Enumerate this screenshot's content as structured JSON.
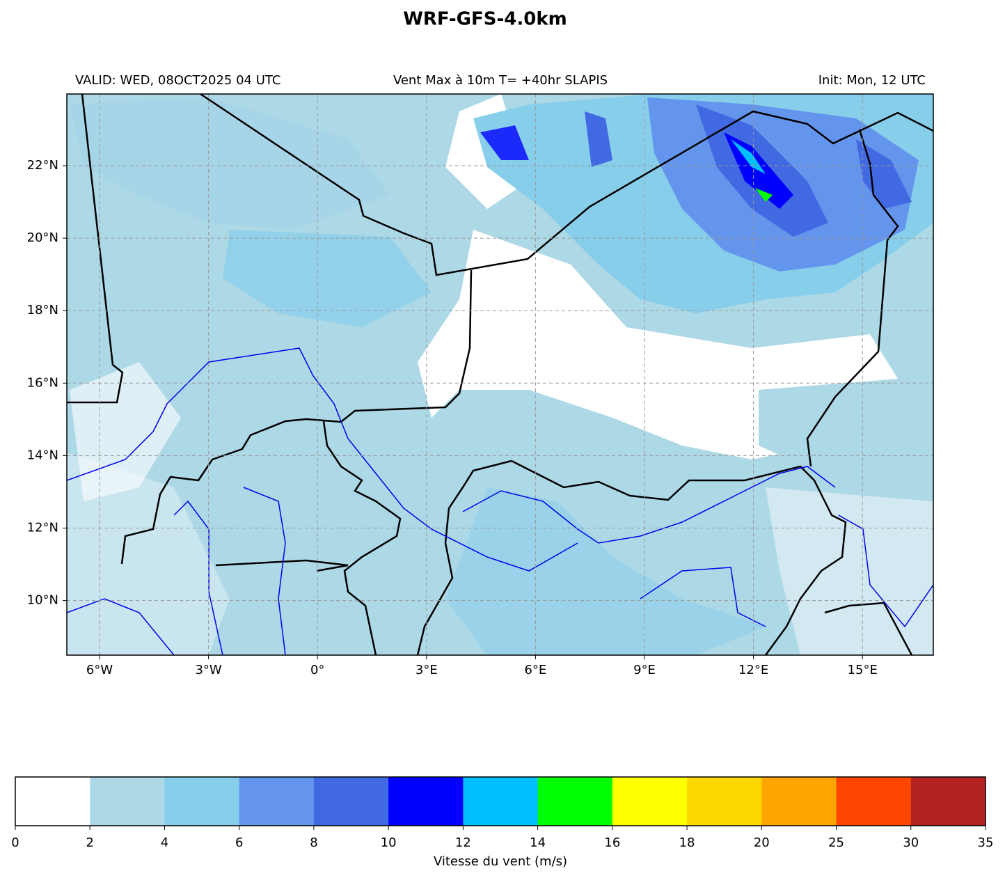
{
  "title": "WRF-GFS-4.0km",
  "subtitle_left": "VALID: WED, 08OCT2025 04 UTC",
  "subtitle_center": "Vent Max à 10m T= +40hr SLAPIS",
  "subtitle_right": "Init: Mon, 12 UTC",
  "map": {
    "lat_labels": [
      "22°N",
      "20°N",
      "18°N",
      "16°N",
      "14°N",
      "12°N",
      "10°N"
    ],
    "lon_labels": [
      "6°W",
      "3°W",
      "0°",
      "3°E",
      "6°E",
      "9°E",
      "12°E",
      "15°E"
    ]
  },
  "colorbar": {
    "label": "Vitesse du vent (m/s)",
    "ticks": [
      0,
      2,
      4,
      6,
      8,
      10,
      12,
      14,
      16,
      18,
      20,
      25,
      30,
      35
    ],
    "colors": [
      "#ffffff",
      "#add8e6",
      "#87ceeb",
      "#6495ed",
      "#4169e1",
      "#0000ff",
      "#00bfff",
      "#00ff00",
      "#ffff00",
      "#ffd700",
      "#ffa500",
      "#ff4500",
      "#b22222"
    ]
  }
}
